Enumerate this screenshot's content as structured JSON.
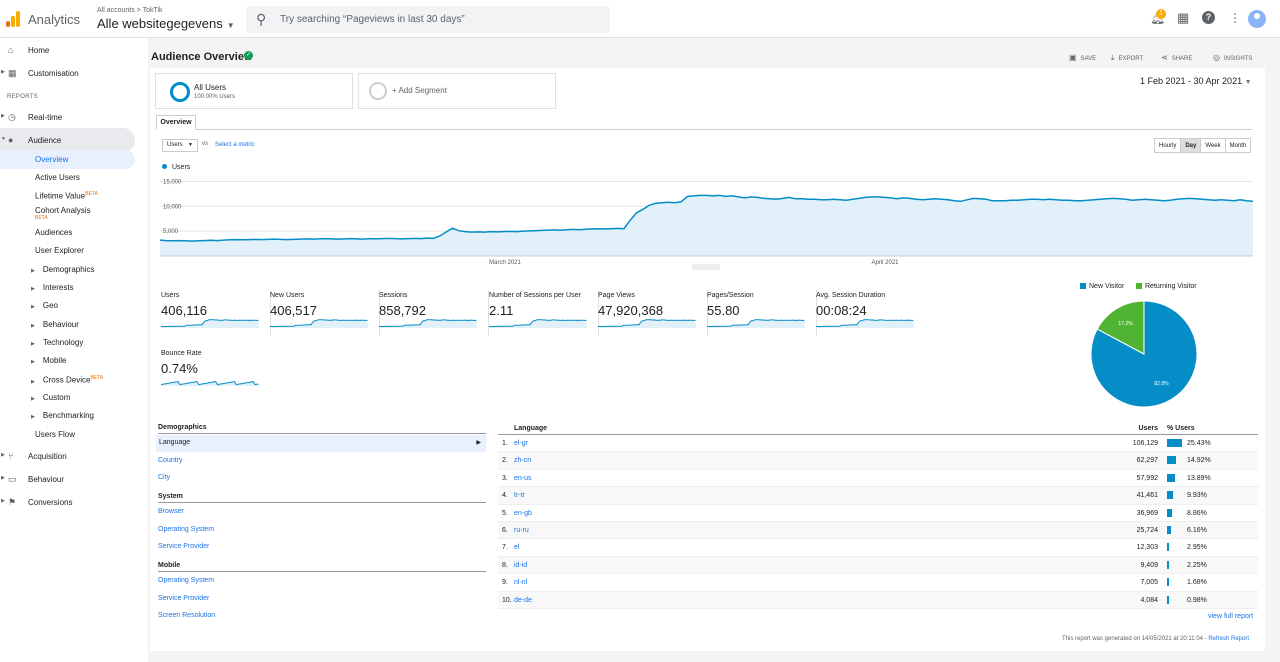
{
  "topbar": {
    "app_name": "Analytics",
    "breadcrumb_small": "All accounts > TokTik",
    "property": "Alle websitegegevens",
    "search_placeholder": "Try searching “Pageviews in last 30 days”",
    "notification_count": "1"
  },
  "sidebar": {
    "home": "Home",
    "customisation": "Customisation",
    "reports_label": "REPORTS",
    "realtime": "Real-time",
    "audience": "Audience",
    "audience_items": [
      "Overview",
      "Active Users",
      "Lifetime Value",
      "Cohort Analysis",
      "Audiences",
      "User Explorer",
      "Demographics",
      "Interests",
      "Geo",
      "Behaviour",
      "Technology",
      "Mobile",
      "Cross Device",
      "Custom",
      "Benchmarking",
      "Users Flow"
    ],
    "beta": "BETA",
    "acquisition": "Acquisition",
    "behaviour": "Behaviour",
    "conversions": "Conversions"
  },
  "header": {
    "title": "Audience Overview",
    "save": "SAVE",
    "export": "EXPORT",
    "share": "SHARE",
    "insights": "INSIGHTS",
    "date_range": "1 Feb 2021 - 30 Apr 2021"
  },
  "segments": {
    "all_users": "All Users",
    "all_users_pct": "100.00% Users",
    "add_segment": "+ Add Segment"
  },
  "chart_controls": {
    "tab": "Overview",
    "metric": "Users",
    "vs": "vs",
    "select_metric": "Select a metric",
    "granularity": [
      "Hourly",
      "Day",
      "Week",
      "Month"
    ],
    "active_granularity": "Day"
  },
  "chart_data": {
    "type": "area",
    "legend": "Users",
    "y_ticks": [
      "15,000",
      "10,000",
      "5,000"
    ],
    "x_ticks": [
      "March 2021",
      "April 2021"
    ],
    "ylim": [
      0,
      16500
    ],
    "values": [
      3200,
      3100,
      3050,
      3100,
      3050,
      3000,
      3050,
      3100,
      3150,
      3100,
      3200,
      3250,
      3300,
      3250,
      3300,
      3350,
      3300,
      3350,
      3400,
      3350,
      3300,
      3350,
      3400,
      3450,
      3400,
      3450,
      3500,
      3450,
      3400,
      3450,
      3500,
      3450,
      3400,
      3500,
      3450,
      3500,
      3550,
      3500,
      3450,
      3500,
      3550,
      3500,
      3600,
      3550,
      4000,
      4800,
      5600,
      5100,
      4900,
      4800,
      4850,
      4800,
      4900,
      4850,
      4900,
      4950,
      4900,
      5000,
      5050,
      5100,
      5150,
      5200,
      5250,
      5200,
      5300,
      5350,
      5300,
      5400,
      5450,
      5500,
      5450,
      5500,
      5550,
      5500,
      7200,
      8700,
      9400,
      10200,
      10600,
      10700,
      10800,
      10700,
      10900,
      12000,
      12100,
      12200,
      12200,
      12100,
      12200,
      12000,
      12100,
      11900,
      11700,
      11900,
      11800,
      11600,
      11500,
      11400,
      11600,
      11800,
      11500,
      11500,
      11400,
      11400,
      11300,
      11300,
      11400,
      11300,
      11200,
      11400,
      11600,
      11800,
      11900,
      11900,
      11800,
      11700,
      11500,
      11700,
      11600,
      11400,
      11300,
      11400,
      11500,
      11400,
      11300,
      11100,
      11000,
      11300,
      11600,
      11500,
      11400,
      11100,
      11100,
      11100,
      11200,
      11200,
      11300,
      11400,
      11400,
      11300,
      11400,
      11300,
      11200,
      11200,
      11100,
      11100,
      11200,
      11300,
      11400,
      11500,
      11600,
      11500,
      11400,
      11200,
      11300,
      11400,
      11300,
      11200,
      11100,
      11200,
      11400,
      11500,
      11600,
      11500,
      11400,
      11300,
      11200,
      11300,
      11200,
      11100,
      11300,
      11100,
      11000
    ]
  },
  "metrics": [
    {
      "label": "Users",
      "value": "406,116"
    },
    {
      "label": "New Users",
      "value": "406,517"
    },
    {
      "label": "Sessions",
      "value": "858,792"
    },
    {
      "label": "Number of Sessions per User",
      "value": "2.11"
    },
    {
      "label": "Page Views",
      "value": "47,920,368"
    },
    {
      "label": "Pages/Session",
      "value": "55.80"
    },
    {
      "label": "Avg. Session Duration",
      "value": "00:08:24"
    },
    {
      "label": "Bounce Rate",
      "value": "0.74%"
    }
  ],
  "pie": {
    "legend": [
      "New Visitor",
      "Returning Visitor"
    ],
    "values": [
      82.8,
      17.2
    ],
    "labels": [
      "82.8%",
      "17.2%"
    ],
    "colors": [
      "#058dc7",
      "#50b432"
    ]
  },
  "dimensions": {
    "demographics": "Demographics",
    "demo_items": [
      "Language",
      "Country",
      "City"
    ],
    "system": "System",
    "system_items": [
      "Browser",
      "Operating System",
      "Service Provider"
    ],
    "mobile": "Mobile",
    "mobile_items": [
      "Operating System",
      "Service Provider",
      "Screen Resolution"
    ]
  },
  "table": {
    "col_language": "Language",
    "col_users": "Users",
    "col_pct": "% Users",
    "rows": [
      {
        "idx": "1.",
        "lang": "el-gr",
        "users": "106,129",
        "pct": "25.43%",
        "frac": 0.2543
      },
      {
        "idx": "2.",
        "lang": "zh-cn",
        "users": "62,297",
        "pct": "14.92%",
        "frac": 0.1492
      },
      {
        "idx": "3.",
        "lang": "en-us",
        "users": "57,992",
        "pct": "13.89%",
        "frac": 0.1389
      },
      {
        "idx": "4.",
        "lang": "tr-tr",
        "users": "41,461",
        "pct": "9.93%",
        "frac": 0.0993
      },
      {
        "idx": "5.",
        "lang": "en-gb",
        "users": "36,969",
        "pct": "8.86%",
        "frac": 0.0886
      },
      {
        "idx": "6.",
        "lang": "ru-ru",
        "users": "25,724",
        "pct": "6.16%",
        "frac": 0.0616
      },
      {
        "idx": "7.",
        "lang": "el",
        "users": "12,303",
        "pct": "2.95%",
        "frac": 0.0295
      },
      {
        "idx": "8.",
        "lang": "id-id",
        "users": "9,409",
        "pct": "2.25%",
        "frac": 0.0225
      },
      {
        "idx": "9.",
        "lang": "nl-nl",
        "users": "7,005",
        "pct": "1.68%",
        "frac": 0.0168
      },
      {
        "idx": "10.",
        "lang": "de-de",
        "users": "4,084",
        "pct": "0.98%",
        "frac": 0.0098
      }
    ],
    "view_full": "view full report"
  },
  "footer": {
    "generated": "This report was generated on 14/05/2021 at 20:11:04 - ",
    "refresh": "Refresh Report"
  }
}
